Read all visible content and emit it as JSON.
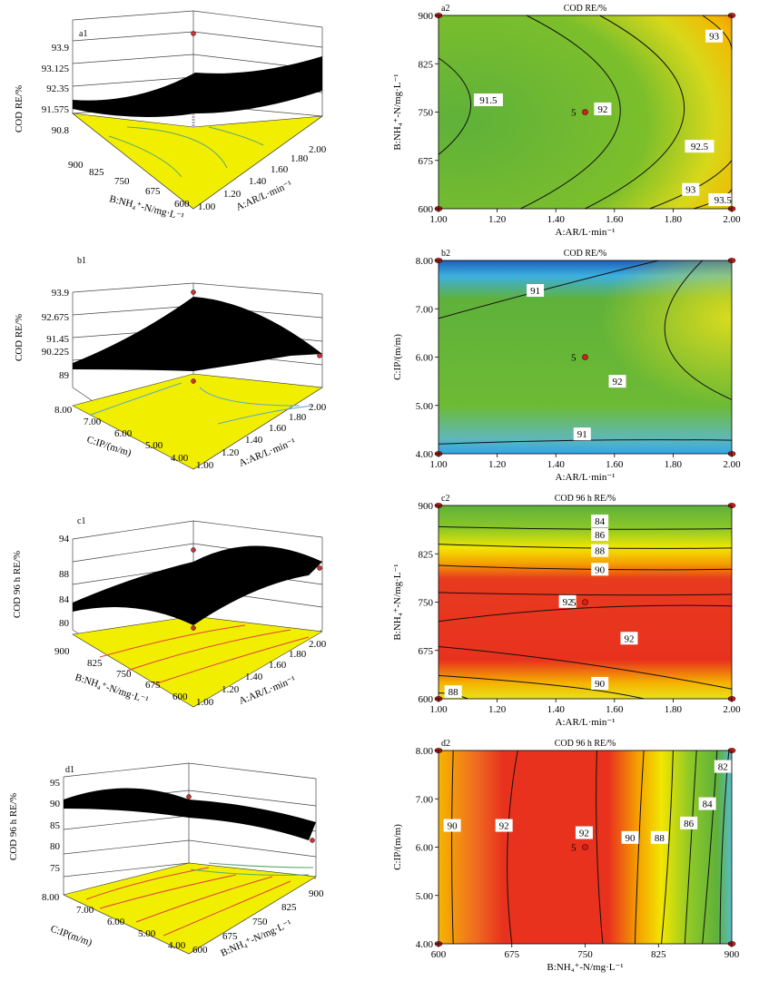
{
  "left_panels": [
    {
      "panel_label": "a1",
      "z_label": "COD RE/%",
      "z_ticks": [
        "93.9",
        "93.125",
        "92.35",
        "91.575",
        "90.8"
      ],
      "left_axis_label": "B:NH₄⁺-N/mg·L⁻¹",
      "left_ticks": [
        "900",
        "825",
        "750",
        "675",
        "600"
      ],
      "right_axis_label": "A:AR/L·min⁻¹",
      "right_ticks": [
        "1.00",
        "1.20",
        "1.40",
        "1.60",
        "1.80",
        "2.00"
      ]
    },
    {
      "panel_label": "b1",
      "z_label": "COD RE/%",
      "z_ticks": [
        "93.9",
        "92.675",
        "91.45",
        "90.225",
        "89"
      ],
      "left_axis_label": "C:IP/(m/m)",
      "left_ticks": [
        "8.00",
        "7.00",
        "6.00",
        "5.00",
        "4.00"
      ],
      "right_axis_label": "A:AR/L·min⁻¹",
      "right_ticks": [
        "1.00",
        "1.20",
        "1.40",
        "1.60",
        "1.80",
        "2.00"
      ]
    },
    {
      "panel_label": "c1",
      "z_label": "COD 96 h RE/%",
      "z_ticks": [
        "94",
        "88",
        "84",
        "80"
      ],
      "left_axis_label": "B:NH₄⁺-N/mg·L⁻¹",
      "left_ticks": [
        "900",
        "825",
        "750",
        "675",
        "600"
      ],
      "right_axis_label": "A:AR/L·min⁻¹",
      "right_ticks": [
        "1.00",
        "1.20",
        "1.40",
        "1.60",
        "1.80",
        "2.00"
      ]
    },
    {
      "panel_label": "d1",
      "z_label": "COD 96 h RE/%",
      "z_ticks": [
        "95",
        "90",
        "85",
        "80",
        "75"
      ],
      "left_axis_label": "C:IP(m/m)",
      "left_ticks": [
        "8.00",
        "7.00",
        "6.00",
        "5.00",
        "4.00"
      ],
      "right_axis_label": "B:NH₄⁺-N/mg·L⁻¹",
      "right_ticks": [
        "600",
        "675",
        "750",
        "825",
        "900"
      ]
    }
  ],
  "chart_data": [
    {
      "type": "heatmap",
      "panel_label": "a2",
      "title": "COD RE/%",
      "xlabel": "A:AR/L·min⁻¹",
      "ylabel": "B:NH₄⁺-N/mg·L⁻¹",
      "xlim": [
        1.0,
        2.0
      ],
      "ylim": [
        600,
        900
      ],
      "x_ticks": [
        "1.00",
        "1.20",
        "1.40",
        "1.60",
        "1.80",
        "2.00"
      ],
      "y_ticks": [
        "600",
        "675",
        "750",
        "825",
        "900"
      ],
      "contour_levels": [
        91.5,
        92,
        92.5,
        93,
        93.5
      ],
      "contour_labels": [
        {
          "text": "91.5",
          "x": 1.17,
          "y": 769
        },
        {
          "text": "92",
          "x": 1.56,
          "y": 755
        },
        {
          "text": "92.5",
          "x": 1.89,
          "y": 697
        },
        {
          "text": "93",
          "x": 1.94,
          "y": 868
        },
        {
          "text": "93",
          "x": 1.86,
          "y": 630
        },
        {
          "text": "93.5",
          "x": 1.97,
          "y": 614
        }
      ],
      "center_point": {
        "x": 1.5,
        "y": 750,
        "label": "5"
      },
      "design_points": [
        [
          1.0,
          600
        ],
        [
          1.0,
          900
        ],
        [
          2.0,
          600
        ],
        [
          2.0,
          900
        ]
      ]
    },
    {
      "type": "heatmap",
      "panel_label": "b2",
      "title": "COD RE/%",
      "xlabel": "A:AR/L·min⁻¹",
      "ylabel": "C:IP/(m/m)",
      "xlim": [
        1.0,
        2.0
      ],
      "ylim": [
        4.0,
        8.0
      ],
      "x_ticks": [
        "1.00",
        "1.20",
        "1.40",
        "1.60",
        "1.80",
        "2.00"
      ],
      "y_ticks": [
        "4.00",
        "5.00",
        "6.00",
        "7.00",
        "8.00"
      ],
      "contour_levels": [
        91,
        92
      ],
      "contour_labels": [
        {
          "text": "91",
          "x": 1.33,
          "y": 7.38
        },
        {
          "text": "92",
          "x": 1.61,
          "y": 5.5
        },
        {
          "text": "91",
          "x": 1.49,
          "y": 4.41
        }
      ],
      "center_point": {
        "x": 1.5,
        "y": 6.0,
        "label": "5"
      },
      "design_points": [
        [
          1.0,
          4.0
        ],
        [
          1.0,
          8.0
        ],
        [
          2.0,
          4.0
        ],
        [
          2.0,
          8.0
        ]
      ]
    },
    {
      "type": "heatmap",
      "panel_label": "c2",
      "title": "COD 96 h RE/%",
      "xlabel": "A:AR/L·min⁻¹",
      "ylabel": "B:NH₄⁺-N/mg·L⁻¹",
      "xlim": [
        1.0,
        2.0
      ],
      "ylim": [
        600,
        900
      ],
      "x_ticks": [
        "1.00",
        "1.20",
        "1.40",
        "1.60",
        "1.80",
        "2.00"
      ],
      "y_ticks": [
        "600",
        "675",
        "750",
        "825",
        "900"
      ],
      "contour_levels": [
        84,
        86,
        88,
        90,
        92
      ],
      "contour_labels": [
        {
          "text": "84",
          "x": 1.55,
          "y": 876
        },
        {
          "text": "86",
          "x": 1.55,
          "y": 855
        },
        {
          "text": "88",
          "x": 1.55,
          "y": 830
        },
        {
          "text": "90",
          "x": 1.55,
          "y": 801
        },
        {
          "text": "92",
          "x": 1.44,
          "y": 751
        },
        {
          "text": "92",
          "x": 1.65,
          "y": 694
        },
        {
          "text": "90",
          "x": 1.55,
          "y": 624
        },
        {
          "text": "88",
          "x": 1.05,
          "y": 611
        }
      ],
      "center_point": {
        "x": 1.5,
        "y": 750,
        "label": "5"
      },
      "design_points": [
        [
          1.0,
          600
        ],
        [
          1.0,
          900
        ],
        [
          2.0,
          600
        ],
        [
          2.0,
          900
        ]
      ]
    },
    {
      "type": "heatmap",
      "panel_label": "d2",
      "title": "COD 96 h RE/%",
      "xlabel": "B:NH₄⁺-N/mg·L⁻¹",
      "ylabel": "C:IP/(m/m)",
      "xlim": [
        600,
        900
      ],
      "ylim": [
        4.0,
        8.0
      ],
      "x_ticks": [
        "600",
        "675",
        "750",
        "825",
        "900"
      ],
      "y_ticks": [
        "4.00",
        "5.00",
        "6.00",
        "7.00",
        "8.00"
      ],
      "contour_levels": [
        82,
        84,
        86,
        88,
        90,
        92
      ],
      "contour_labels": [
        {
          "text": "90",
          "x": 614,
          "y": 6.45
        },
        {
          "text": "92",
          "x": 667,
          "y": 6.45
        },
        {
          "text": "92",
          "x": 749,
          "y": 6.3
        },
        {
          "text": "90",
          "x": 796,
          "y": 6.2
        },
        {
          "text": "88",
          "x": 826,
          "y": 6.2
        },
        {
          "text": "86",
          "x": 856,
          "y": 6.5
        },
        {
          "text": "84",
          "x": 875,
          "y": 6.9
        },
        {
          "text": "82",
          "x": 891,
          "y": 7.67
        }
      ],
      "center_point": {
        "x": 750,
        "y": 6.0,
        "label": "5"
      },
      "design_points": [
        [
          600,
          4.0
        ],
        [
          600,
          8.0
        ],
        [
          900,
          4.0
        ],
        [
          900,
          8.0
        ]
      ]
    }
  ]
}
